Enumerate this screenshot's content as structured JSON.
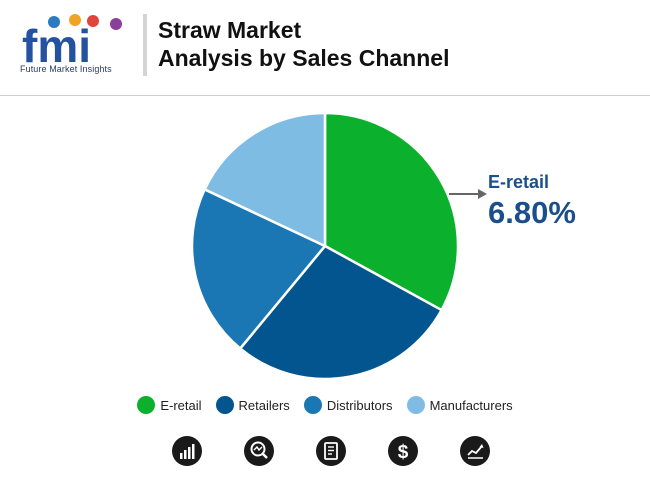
{
  "header": {
    "logo_text": "fmi",
    "logo_subtitle": "Future Market Insights",
    "title_line1": "Straw Market",
    "title_line2": "Analysis by Sales Channel"
  },
  "colors": {
    "e_retail": "#0bb02c",
    "retailers": "#03558f",
    "distributors": "#1a77b4",
    "manufacturers": "#7fbce4",
    "callout": "#1b4f8c"
  },
  "callout": {
    "label": "E-retail",
    "value": "6.80%"
  },
  "chart_data": {
    "type": "pie",
    "slices": [
      {
        "label": "E-retail",
        "value": 33
      },
      {
        "label": "Retailers",
        "value": 28
      },
      {
        "label": "Distributors",
        "value": 21
      },
      {
        "label": "Manufacturers",
        "value": 18
      }
    ],
    "legend": [
      "E-retail",
      "Retailers",
      "Distributors",
      "Manufacturers"
    ],
    "legend_position": "bottom"
  },
  "footer_icons": [
    "bar-chart-icon",
    "magnify-chart-icon",
    "document-icon",
    "dollar-icon",
    "trend-chart-icon"
  ]
}
